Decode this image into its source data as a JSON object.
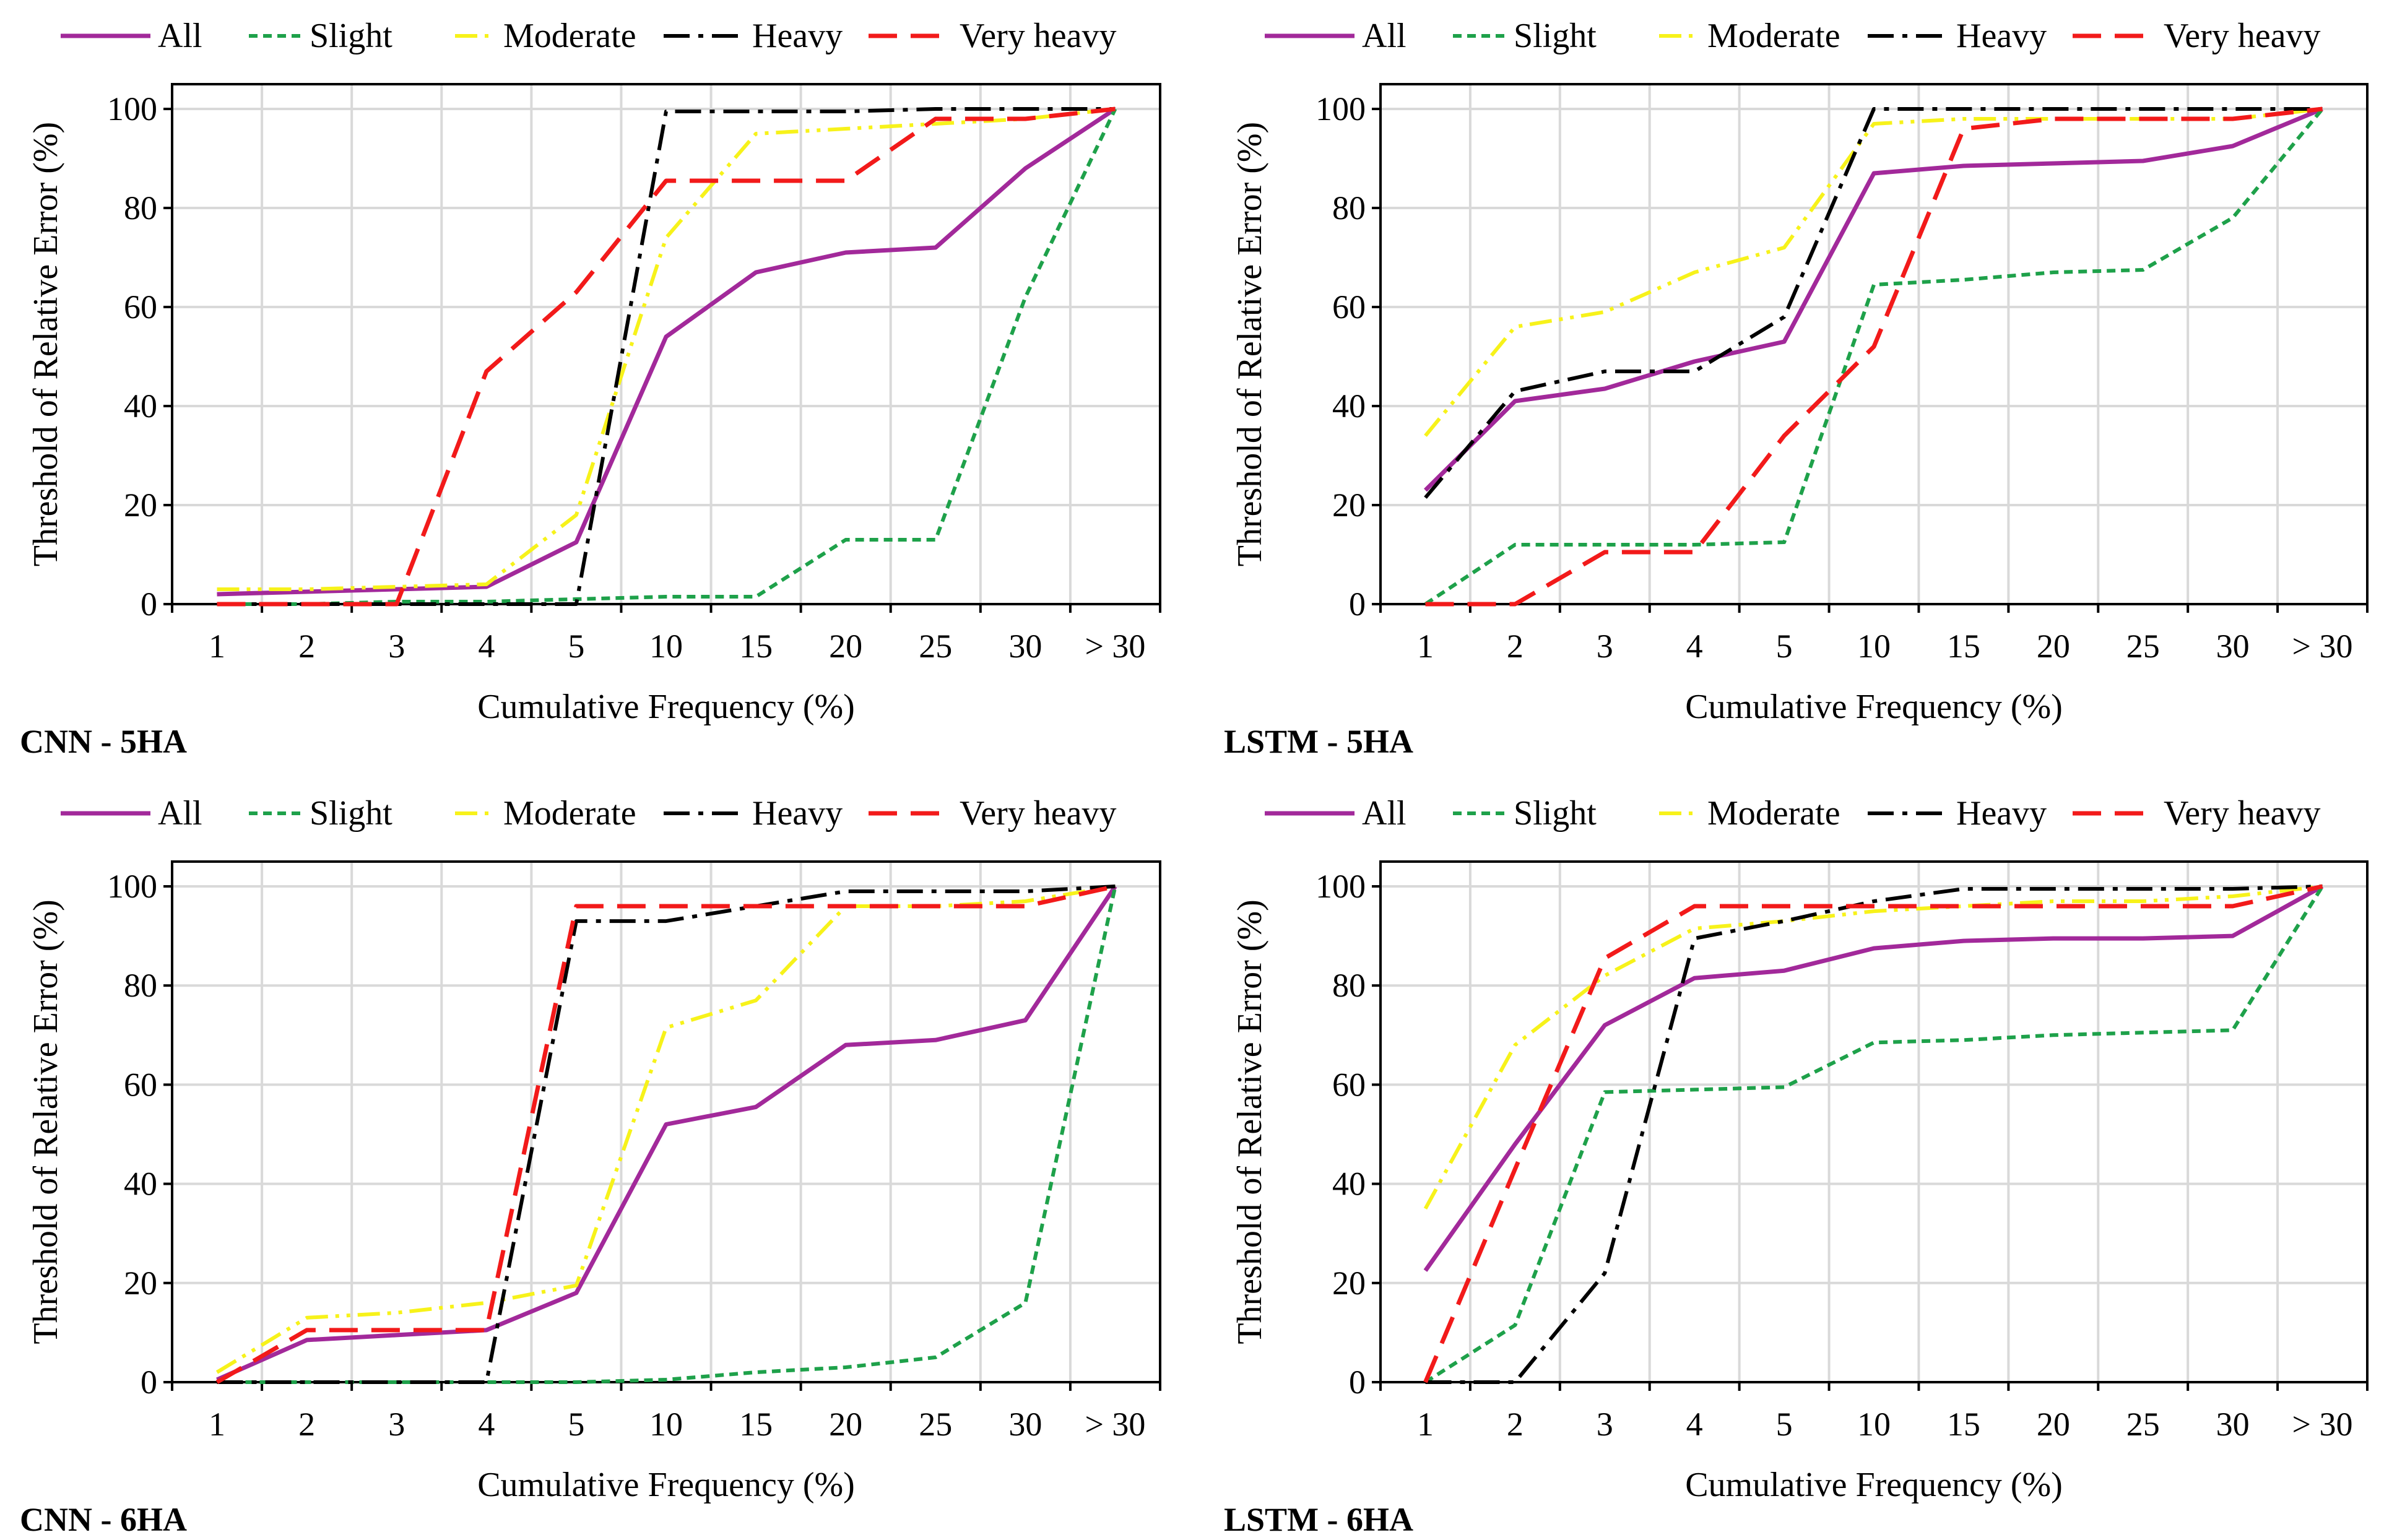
{
  "chart_data": [
    {
      "type": "line",
      "panel_label": "CNN - 5HA",
      "xlabel": "Cumulative Frequency (%)",
      "ylabel": "Threshold of Relative  Error (%)",
      "categories": [
        "1",
        "2",
        "3",
        "4",
        "5",
        "10",
        "15",
        "20",
        "25",
        "30",
        "> 30"
      ],
      "ylim": [
        0,
        100
      ],
      "yticks": [
        "0",
        "20",
        "40",
        "60",
        "80",
        "100"
      ],
      "legend_position": "top",
      "series": [
        {
          "name": "All",
          "values": [
            2,
            2.5,
            3,
            3.5,
            12.5,
            54,
            67,
            71,
            72,
            88,
            100
          ]
        },
        {
          "name": "Slight",
          "values": [
            0,
            0,
            0.5,
            0.5,
            1,
            1.5,
            1.5,
            13,
            13,
            62,
            100
          ]
        },
        {
          "name": "Moderate",
          "values": [
            3,
            3,
            3.5,
            4,
            18,
            74,
            95,
            96,
            97,
            98,
            100
          ]
        },
        {
          "name": "Heavy",
          "values": [
            0,
            0,
            0,
            0,
            0,
            99.5,
            99.5,
            99.5,
            100,
            100,
            100
          ]
        },
        {
          "name": "Very heavy",
          "values": [
            0,
            0,
            0,
            47,
            63,
            85.5,
            85.5,
            85.5,
            98,
            98,
            100
          ]
        }
      ]
    },
    {
      "type": "line",
      "panel_label": "LSTM - 5HA",
      "xlabel": "Cumulative Frequency (%)",
      "ylabel": "Threshold of Relative  Error (%)",
      "categories": [
        "1",
        "2",
        "3",
        "4",
        "5",
        "10",
        "15",
        "20",
        "25",
        "30",
        "> 30"
      ],
      "ylim": [
        0,
        100
      ],
      "yticks": [
        "0",
        "20",
        "40",
        "60",
        "80",
        "100"
      ],
      "legend_position": "top",
      "series": [
        {
          "name": "All",
          "values": [
            23,
            41,
            43.5,
            49,
            53,
            87,
            88.5,
            89,
            89.5,
            92.5,
            100
          ]
        },
        {
          "name": "Slight",
          "values": [
            0,
            12,
            12,
            12,
            12.5,
            64.5,
            65.5,
            67,
            67.5,
            78,
            100
          ]
        },
        {
          "name": "Moderate",
          "values": [
            34,
            56,
            59,
            67,
            72,
            97,
            98,
            98,
            98,
            98,
            100
          ]
        },
        {
          "name": "Heavy",
          "values": [
            21.5,
            43,
            47,
            47,
            58,
            100,
            100,
            100,
            100,
            100,
            100
          ]
        },
        {
          "name": "Very heavy",
          "values": [
            0,
            0,
            10.5,
            10.5,
            34,
            52,
            96,
            98,
            98,
            98,
            100
          ]
        }
      ]
    },
    {
      "type": "line",
      "panel_label": "CNN - 6HA",
      "xlabel": "Cumulative Frequency (%)",
      "ylabel": "Threshold of Relative  Error (%)",
      "categories": [
        "1",
        "2",
        "3",
        "4",
        "5",
        "10",
        "15",
        "20",
        "25",
        "30",
        "> 30"
      ],
      "ylim": [
        0,
        100
      ],
      "yticks": [
        "0",
        "20",
        "40",
        "60",
        "80",
        "100"
      ],
      "legend_position": "top",
      "series": [
        {
          "name": "All",
          "values": [
            0.5,
            8.5,
            9.5,
            10.5,
            18,
            52,
            55.5,
            68,
            69,
            73,
            100
          ]
        },
        {
          "name": "Slight",
          "values": [
            0,
            0,
            0,
            0,
            0,
            0.5,
            2,
            3,
            5,
            16,
            100
          ]
        },
        {
          "name": "Moderate",
          "values": [
            2,
            13,
            14,
            16,
            19.5,
            71.5,
            77,
            96,
            96,
            97,
            100
          ]
        },
        {
          "name": "Heavy",
          "values": [
            0,
            0,
            0,
            0,
            93,
            93,
            96,
            99,
            99,
            99,
            100
          ]
        },
        {
          "name": "Very heavy",
          "values": [
            0,
            10.5,
            10.5,
            10.5,
            96,
            96,
            96,
            96,
            96,
            96,
            100
          ]
        }
      ]
    },
    {
      "type": "line",
      "panel_label": "LSTM - 6HA",
      "xlabel": "Cumulative Frequency (%)",
      "ylabel": "Threshold of Relative  Error (%)",
      "categories": [
        "1",
        "2",
        "3",
        "4",
        "5",
        "10",
        "15",
        "20",
        "25",
        "30",
        "> 30"
      ],
      "ylim": [
        0,
        100
      ],
      "yticks": [
        "0",
        "20",
        "40",
        "60",
        "80",
        "100"
      ],
      "legend_position": "top",
      "series": [
        {
          "name": "All",
          "values": [
            22.5,
            48,
            72,
            81.5,
            83,
            87.5,
            89,
            89.5,
            89.5,
            90,
            100
          ]
        },
        {
          "name": "Slight",
          "values": [
            0,
            11.5,
            58.5,
            59,
            59.5,
            68.5,
            69,
            70,
            70.5,
            71,
            100
          ]
        },
        {
          "name": "Moderate",
          "values": [
            35,
            68,
            82,
            91.5,
            93,
            95,
            96,
            97,
            97,
            98,
            100
          ]
        },
        {
          "name": "Heavy",
          "values": [
            0,
            0,
            22,
            89.5,
            93,
            97,
            99.5,
            99.5,
            99.5,
            99.5,
            100
          ]
        },
        {
          "name": "Very heavy",
          "values": [
            0,
            43,
            85.5,
            96,
            96,
            96,
            96,
            96,
            96,
            96,
            100
          ]
        }
      ]
    }
  ],
  "series_styles": [
    {
      "name": "All",
      "color": "#A2299A",
      "dash": "solid"
    },
    {
      "name": "Slight",
      "color": "#1EA14A",
      "dash": "short-dash"
    },
    {
      "name": "Moderate",
      "color": "#F7F21A",
      "dash": "dash-dot-dot"
    },
    {
      "name": "Heavy",
      "color": "#000000",
      "dash": "dash-dot"
    },
    {
      "name": "Very heavy",
      "color": "#F21A1A",
      "dash": "long-dash"
    }
  ]
}
